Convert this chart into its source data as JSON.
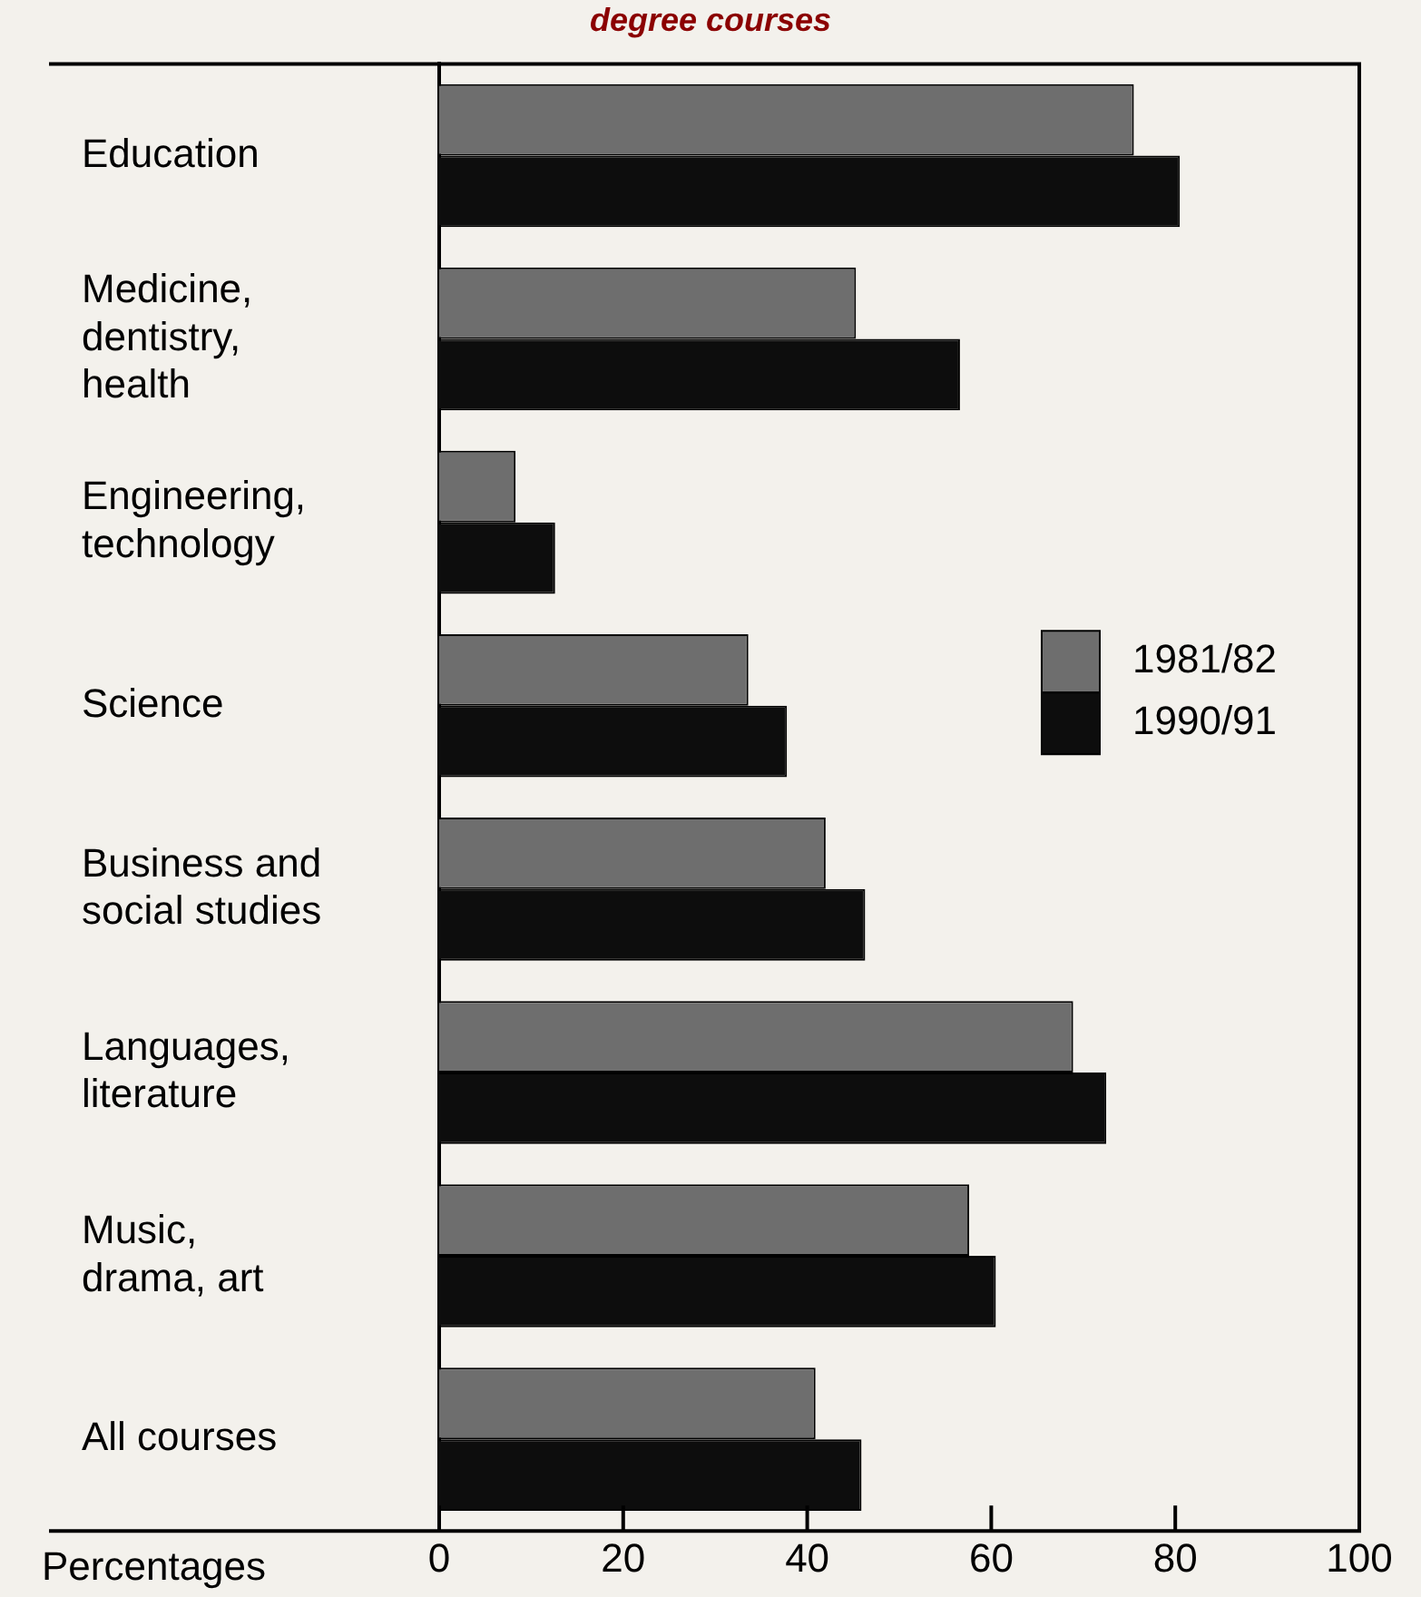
{
  "chart_data": {
    "type": "bar",
    "orientation": "horizontal",
    "title": "degree courses",
    "xlabel": "Percentages",
    "categories": [
      "Education",
      "Medicine, dentistry, health",
      "Engineering, technology",
      "Science",
      "Business and social studies",
      "Languages, literature",
      "Music, drama, art",
      "All courses"
    ],
    "series": [
      {
        "name": "1981/82",
        "color": "#6e6e6e",
        "values": [
          75.5,
          45.3,
          8.3,
          33.6,
          42,
          68.9,
          57.6,
          40.9
        ]
      },
      {
        "name": "1990/91",
        "color": "#0d0d0d",
        "values": [
          80.5,
          56.6,
          12.6,
          37.8,
          46.3,
          72.5,
          60.5,
          45.9
        ]
      }
    ],
    "xlim": [
      0,
      100
    ],
    "xticks": [
      0,
      20,
      40,
      60,
      80,
      100
    ],
    "grid": false,
    "legend": "right"
  }
}
